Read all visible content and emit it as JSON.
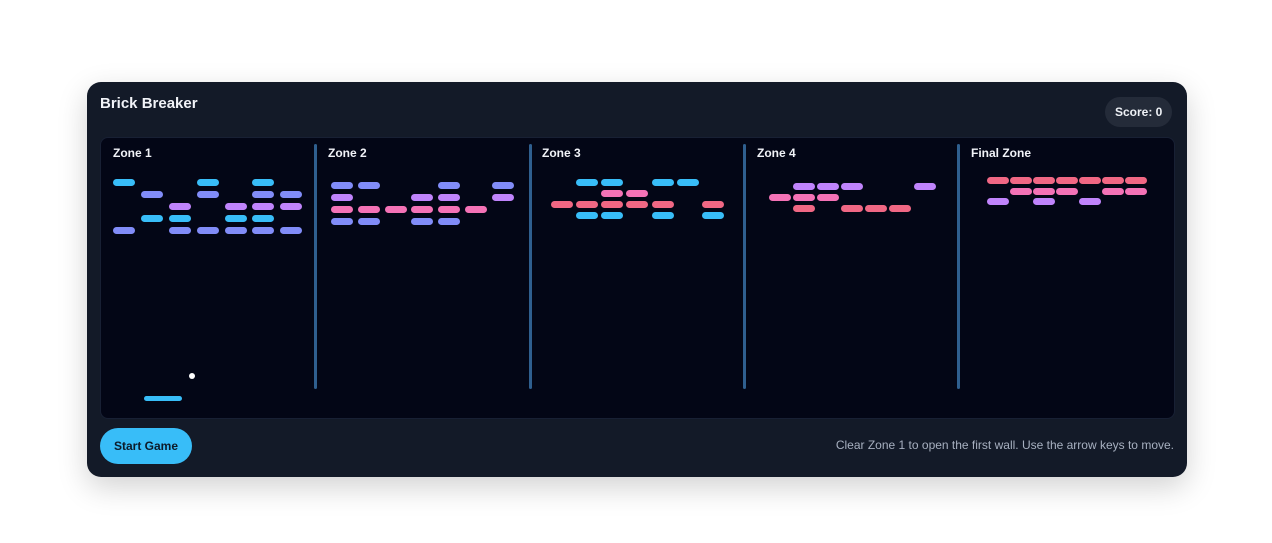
{
  "game": {
    "title": "Brick Breaker",
    "score_text": "Score: 0",
    "start_button_label": "Start Game",
    "hint": "Clear Zone 1 to open the first wall. Use the arrow keys to move."
  },
  "zones": [
    {
      "label": "Zone 1"
    },
    {
      "label": "Zone 2"
    },
    {
      "label": "Zone 3"
    },
    {
      "label": "Zone 4"
    },
    {
      "label": "Final Zone"
    }
  ],
  "colors": {
    "background": "#131a28",
    "arena": "#030616",
    "accent": "#38bdf8",
    "brick_blue": "#38bdf8",
    "brick_indigo": "#818cf8",
    "brick_violet": "#c084fc",
    "brick_pink": "#f472b6",
    "brick_red": "#f06784"
  }
}
